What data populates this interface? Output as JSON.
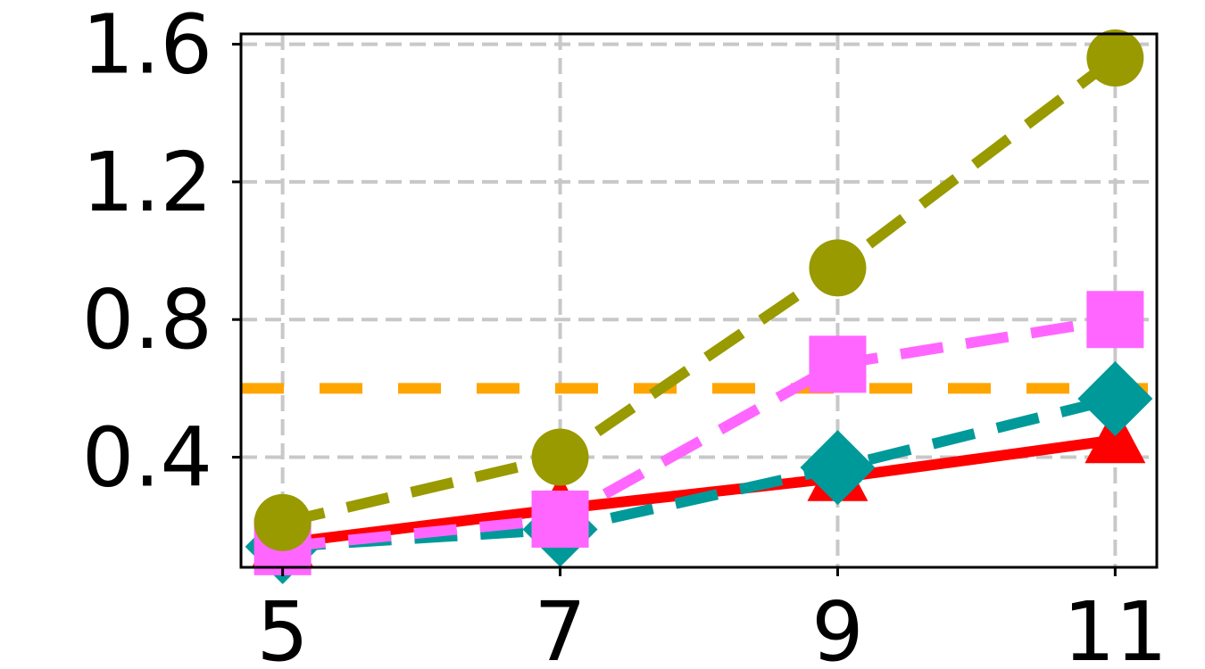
{
  "chart_data": {
    "type": "line",
    "title": "",
    "xlabel": "",
    "ylabel": "",
    "x": [
      5,
      7,
      9,
      11
    ],
    "xlim": [
      4.7,
      11.3
    ],
    "ylim": [
      0.08,
      1.63
    ],
    "xticks": [
      "5",
      "7",
      "9",
      "11"
    ],
    "yticks": [
      "0.4",
      "0.8",
      "1.2",
      "1.6"
    ],
    "grid": true,
    "legend": "none",
    "series": [
      {
        "color": "#999900",
        "style": "dashed",
        "marker": "circle",
        "values": [
          0.21,
          0.4,
          0.95,
          1.56
        ]
      },
      {
        "color": "#ff66ff",
        "style": "dashed",
        "marker": "square",
        "values": [
          0.14,
          0.22,
          0.67,
          0.8
        ]
      },
      {
        "color": "#009999",
        "style": "dashed",
        "marker": "diamond",
        "values": [
          0.14,
          0.19,
          0.37,
          0.57
        ]
      },
      {
        "color": "#ff0000",
        "style": "solid",
        "marker": "triangle",
        "values": [
          0.15,
          0.25,
          0.34,
          0.45
        ]
      }
    ],
    "reference_line": {
      "color": "#ffa500",
      "style": "dashed",
      "value": 0.6
    }
  }
}
